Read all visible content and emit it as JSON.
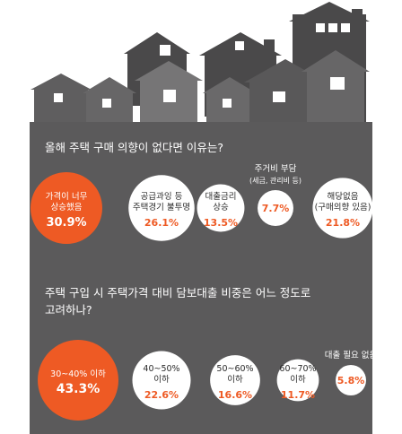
{
  "colors": {
    "panel": "#5b5a5b",
    "house_dark": "#4a494a",
    "house_mid": "#5f5e5f",
    "house_light": "#767576",
    "window": "#ffffff",
    "accent": "#ee5a24",
    "bubble_white": "#ffffff",
    "text_dark": "#2b2b2b",
    "text_light": "#ffffff"
  },
  "chart_data": [
    {
      "type": "bubble",
      "title": "올해 주택 구매 의향이 없다면 이유는?",
      "unit": "%",
      "items": [
        {
          "label": [
            "가격이 너무",
            "상승했음"
          ],
          "value": 30.9,
          "value_label": "30.9%",
          "highlight": true
        },
        {
          "label": [
            "공급과잉 등",
            "주택경기 불투명"
          ],
          "value": 26.1,
          "value_label": "26.1%",
          "highlight": false
        },
        {
          "label": [
            "대출금리",
            "상승"
          ],
          "value": 13.5,
          "value_label": "13.5%",
          "highlight": false
        },
        {
          "label": [
            "주거비 부담",
            "(세금, 관리비 등)"
          ],
          "value": 7.7,
          "value_label": "7.7%",
          "highlight": false,
          "label_outside": true
        },
        {
          "label": [
            "해당없음",
            "(구매의향 있음)"
          ],
          "value": 21.8,
          "value_label": "21.8%",
          "highlight": false
        }
      ]
    },
    {
      "type": "bubble",
      "title": [
        "주택 구입 시 주택가격 대비 담보대출 비중은 어느 정도로",
        "고려하나?"
      ],
      "unit": "%",
      "items": [
        {
          "label": [
            "30~40% 이하"
          ],
          "value": 43.3,
          "value_label": "43.3%",
          "highlight": true
        },
        {
          "label": [
            "40~50%",
            "이하"
          ],
          "value": 22.6,
          "value_label": "22.6%",
          "highlight": false
        },
        {
          "label": [
            "50~60%",
            "이하"
          ],
          "value": 16.6,
          "value_label": "16.6%",
          "highlight": false
        },
        {
          "label": [
            "60~70%",
            "이하"
          ],
          "value": 11.7,
          "value_label": "11.7%",
          "highlight": false
        },
        {
          "label": [
            "대출 필요 없음"
          ],
          "value": 5.8,
          "value_label": "5.8%",
          "highlight": false,
          "label_outside": true
        }
      ]
    }
  ]
}
